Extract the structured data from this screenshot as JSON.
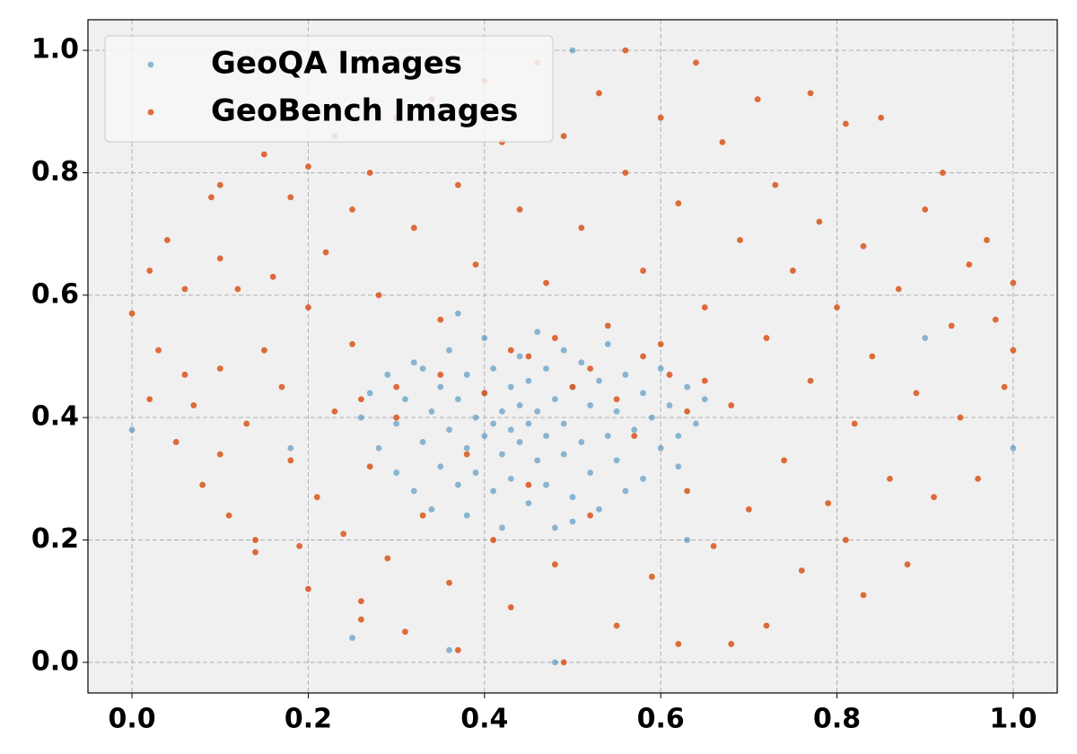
{
  "chart_data": {
    "type": "scatter",
    "xlim": [
      -0.05,
      1.05
    ],
    "ylim": [
      -0.05,
      1.05
    ],
    "xticks": [
      {
        "value": 0,
        "label": "0.0"
      },
      0.2,
      0.4,
      0.6,
      0.8,
      {
        "value": 1,
        "label": "1.0"
      }
    ],
    "yticks": [
      {
        "value": 0,
        "label": "0.0"
      },
      0.2,
      0.4,
      0.6,
      0.8,
      {
        "value": 1,
        "label": "1.0"
      }
    ],
    "grid": true,
    "legend": "upper left",
    "series": [
      {
        "name": "GeoQA Images",
        "color": "#1f77b4",
        "x": [
          0.0,
          0.18,
          0.25,
          0.36,
          0.48,
          0.5,
          0.9,
          1.0,
          0.63,
          0.62,
          0.26,
          0.27,
          0.28,
          0.29,
          0.3,
          0.3,
          0.31,
          0.32,
          0.32,
          0.33,
          0.34,
          0.34,
          0.35,
          0.35,
          0.36,
          0.36,
          0.37,
          0.37,
          0.38,
          0.38,
          0.38,
          0.39,
          0.39,
          0.4,
          0.4,
          0.4,
          0.41,
          0.41,
          0.41,
          0.42,
          0.42,
          0.42,
          0.43,
          0.43,
          0.43,
          0.44,
          0.44,
          0.44,
          0.45,
          0.45,
          0.45,
          0.46,
          0.46,
          0.46,
          0.47,
          0.47,
          0.47,
          0.48,
          0.48,
          0.49,
          0.49,
          0.49,
          0.5,
          0.5,
          0.51,
          0.51,
          0.52,
          0.52,
          0.53,
          0.53,
          0.54,
          0.54,
          0.55,
          0.55,
          0.56,
          0.56,
          0.57,
          0.58,
          0.58,
          0.59,
          0.6,
          0.6,
          0.61,
          0.62,
          0.63,
          0.64,
          0.65,
          0.37,
          0.5,
          0.33
        ],
        "values": [
          0.38,
          0.35,
          0.04,
          0.02,
          0.0,
          1.0,
          0.53,
          0.35,
          0.2,
          0.32,
          0.4,
          0.44,
          0.35,
          0.47,
          0.31,
          0.39,
          0.43,
          0.28,
          0.49,
          0.36,
          0.41,
          0.25,
          0.45,
          0.32,
          0.51,
          0.38,
          0.29,
          0.43,
          0.35,
          0.47,
          0.24,
          0.4,
          0.31,
          0.53,
          0.37,
          0.44,
          0.28,
          0.39,
          0.48,
          0.34,
          0.41,
          0.22,
          0.38,
          0.45,
          0.3,
          0.5,
          0.36,
          0.42,
          0.26,
          0.39,
          0.46,
          0.33,
          0.54,
          0.41,
          0.29,
          0.37,
          0.48,
          0.22,
          0.43,
          0.34,
          0.51,
          0.39,
          0.27,
          0.45,
          0.36,
          0.49,
          0.31,
          0.42,
          0.25,
          0.46,
          0.37,
          0.52,
          0.33,
          0.41,
          0.28,
          0.47,
          0.38,
          0.44,
          0.3,
          0.4,
          0.35,
          0.48,
          0.42,
          0.37,
          0.45,
          0.39,
          0.43,
          0.57,
          0.23,
          0.48
        ]
      },
      {
        "name": "GeoBench Images",
        "color": "#d95319",
        "x": [
          0.0,
          0.02,
          0.02,
          0.03,
          0.04,
          0.05,
          0.06,
          0.06,
          0.07,
          0.08,
          0.09,
          0.1,
          0.1,
          0.1,
          0.1,
          0.11,
          0.12,
          0.13,
          0.14,
          0.14,
          0.15,
          0.15,
          0.16,
          0.17,
          0.18,
          0.18,
          0.19,
          0.2,
          0.2,
          0.2,
          0.21,
          0.22,
          0.23,
          0.23,
          0.24,
          0.25,
          0.25,
          0.26,
          0.26,
          0.27,
          0.27,
          0.28,
          0.29,
          0.3,
          0.3,
          0.31,
          0.32,
          0.33,
          0.34,
          0.35,
          0.36,
          0.37,
          0.37,
          0.38,
          0.39,
          0.4,
          0.41,
          0.42,
          0.43,
          0.43,
          0.44,
          0.45,
          0.46,
          0.47,
          0.48,
          0.49,
          0.49,
          0.5,
          0.51,
          0.52,
          0.53,
          0.54,
          0.55,
          0.56,
          0.56,
          0.57,
          0.58,
          0.59,
          0.6,
          0.61,
          0.62,
          0.62,
          0.63,
          0.64,
          0.65,
          0.66,
          0.67,
          0.68,
          0.68,
          0.69,
          0.7,
          0.71,
          0.72,
          0.72,
          0.73,
          0.74,
          0.75,
          0.76,
          0.77,
          0.77,
          0.78,
          0.79,
          0.8,
          0.81,
          0.81,
          0.82,
          0.83,
          0.83,
          0.84,
          0.85,
          0.86,
          0.87,
          0.88,
          0.89,
          0.9,
          0.91,
          0.92,
          0.93,
          0.94,
          0.95,
          0.96,
          0.97,
          0.98,
          0.99,
          1.0,
          1.0,
          0.35,
          0.4,
          0.45,
          0.52,
          0.55,
          0.6,
          0.65,
          0.3,
          0.26,
          0.48,
          0.58,
          0.63
        ],
        "values": [
          0.57,
          0.64,
          0.43,
          0.51,
          0.69,
          0.36,
          0.61,
          0.47,
          0.42,
          0.29,
          0.76,
          0.78,
          0.66,
          0.48,
          0.34,
          0.24,
          0.61,
          0.39,
          0.2,
          0.18,
          0.51,
          0.83,
          0.63,
          0.45,
          0.33,
          0.76,
          0.19,
          0.12,
          0.58,
          0.81,
          0.27,
          0.67,
          0.41,
          0.86,
          0.21,
          0.74,
          0.52,
          0.1,
          0.07,
          0.32,
          0.8,
          0.6,
          0.17,
          0.89,
          0.45,
          0.05,
          0.71,
          0.24,
          0.92,
          0.56,
          0.13,
          0.78,
          0.02,
          0.34,
          0.65,
          0.95,
          0.2,
          0.85,
          0.09,
          0.51,
          0.74,
          0.29,
          0.98,
          0.62,
          0.16,
          0.0,
          0.86,
          0.45,
          0.71,
          0.24,
          0.93,
          0.55,
          0.06,
          1.0,
          0.8,
          0.37,
          0.64,
          0.14,
          0.89,
          0.47,
          0.03,
          0.75,
          0.28,
          0.98,
          0.58,
          0.19,
          0.85,
          0.42,
          0.03,
          0.69,
          0.25,
          0.92,
          0.53,
          0.06,
          0.78,
          0.33,
          0.64,
          0.15,
          0.93,
          0.46,
          0.72,
          0.26,
          0.58,
          0.88,
          0.2,
          0.39,
          0.11,
          0.68,
          0.5,
          0.89,
          0.3,
          0.61,
          0.16,
          0.44,
          0.74,
          0.27,
          0.8,
          0.55,
          0.4,
          0.65,
          0.3,
          0.69,
          0.56,
          0.45,
          0.62,
          0.51,
          0.47,
          0.44,
          0.5,
          0.48,
          0.43,
          0.52,
          0.46,
          0.4,
          0.43,
          0.53,
          0.5,
          0.41
        ]
      }
    ]
  }
}
